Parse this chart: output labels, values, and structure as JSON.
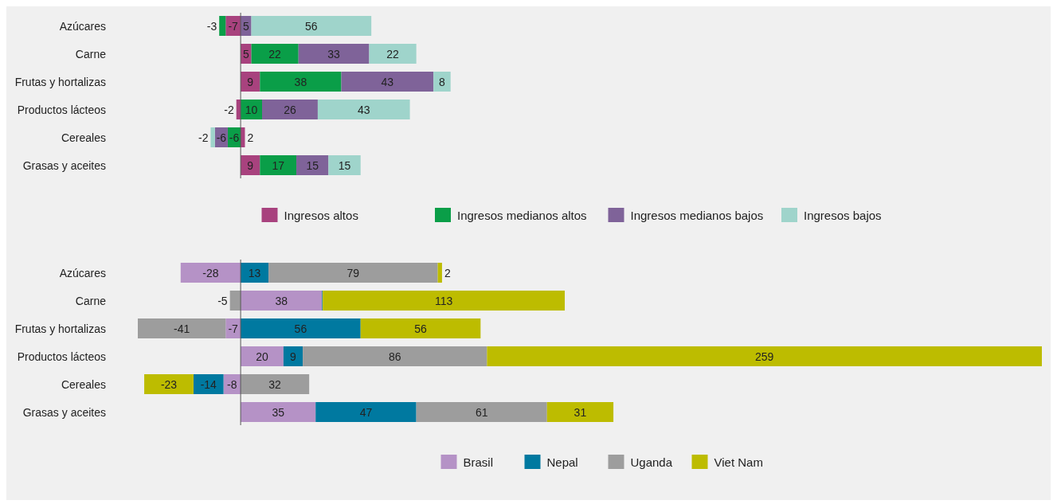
{
  "chart_data": [
    {
      "type": "bar",
      "orientation": "horizontal",
      "stacked": true,
      "data_labels": true,
      "legend": "bottom",
      "categories": [
        "Azúcares",
        "Carne",
        "Frutas y hortalizas",
        "Productos lácteos",
        "Cereales",
        "Grasas y aceites"
      ],
      "series": [
        {
          "name": "Ingresos altos",
          "color": "#a8427e",
          "values": [
            -7,
            5,
            9,
            -2,
            2,
            9
          ]
        },
        {
          "name": "Ingresos medianos altos",
          "color": "#0a9e48",
          "values": [
            -3,
            22,
            38,
            10,
            -6,
            17
          ]
        },
        {
          "name": "Ingresos medianos bajos",
          "color": "#7f6399",
          "values": [
            5,
            33,
            43,
            26,
            -6,
            15
          ]
        },
        {
          "name": "Ingresos bajos",
          "color": "#9fd4cb",
          "values": [
            56,
            22,
            8,
            43,
            -2,
            15
          ]
        }
      ]
    },
    {
      "type": "bar",
      "orientation": "horizontal",
      "stacked": true,
      "legend": "bottom",
      "categories": [
        "Azúcares",
        "Carne",
        "Frutas y hortalizas",
        "Productos lácteos",
        "Cereales",
        "Grasas y aceites"
      ],
      "series": [
        {
          "name": "Brasil",
          "color": "#b592c6",
          "values": [
            -28,
            38,
            -7,
            20,
            -8,
            35
          ],
          "value_labels": [
            "-28",
            "38",
            "-7",
            "20",
            "-8",
            "35"
          ]
        },
        {
          "name": "Nepal",
          "color": "#0079a0",
          "values": [
            13,
            0.3,
            56,
            9,
            -14,
            47
          ],
          "value_labels": [
            "13",
            null,
            "56",
            "9",
            "-14",
            "47"
          ]
        },
        {
          "name": "Uganda",
          "color": "#9d9d9d",
          "values": [
            79,
            -5,
            -41,
            86,
            32,
            61
          ],
          "value_labels": [
            "79",
            "-5",
            "-41",
            "86",
            "32",
            "61"
          ]
        },
        {
          "name": "Viet Nam",
          "color": "#bdbc00",
          "values": [
            2,
            113,
            56,
            259,
            -23,
            31
          ],
          "value_labels": [
            "2",
            "113",
            "56",
            "259",
            "-23",
            "31"
          ]
        }
      ]
    }
  ]
}
